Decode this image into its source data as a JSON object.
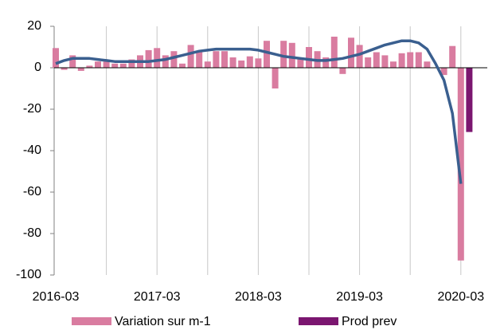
{
  "chart_data": {
    "type": "bar",
    "categories": [
      "2016-03",
      null,
      null,
      null,
      null,
      null,
      null,
      null,
      null,
      null,
      null,
      null,
      "2017-03",
      null,
      null,
      null,
      null,
      null,
      null,
      null,
      null,
      null,
      null,
      null,
      "2018-03",
      null,
      null,
      null,
      null,
      null,
      null,
      null,
      null,
      null,
      null,
      null,
      "2019-03",
      null,
      null,
      null,
      null,
      null,
      null,
      null,
      null,
      null,
      null,
      null,
      "2020-03",
      null
    ],
    "series": [
      {
        "name": "Variation sur m-1",
        "type": "bar",
        "color": "#d97ca0",
        "values": [
          9.5,
          -1,
          6,
          -1.5,
          1,
          3,
          3,
          2,
          2,
          4,
          6,
          8.5,
          9.5,
          6,
          8,
          2,
          11,
          8,
          3,
          8,
          8,
          5,
          3.5,
          5.5,
          4.5,
          13,
          -10,
          13,
          12,
          5,
          10,
          8,
          5,
          15,
          -3,
          14.5,
          11,
          5,
          7.5,
          6,
          3,
          7,
          7.5,
          7.5,
          3,
          0,
          -3.5,
          10.5,
          -93,
          null
        ]
      },
      {
        "name": "Prod prev",
        "type": "bar",
        "color": "#7b1670",
        "values": [
          null,
          null,
          null,
          null,
          null,
          null,
          null,
          null,
          null,
          null,
          null,
          null,
          null,
          null,
          null,
          null,
          null,
          null,
          null,
          null,
          null,
          null,
          null,
          null,
          null,
          null,
          null,
          null,
          null,
          null,
          null,
          null,
          null,
          null,
          null,
          null,
          null,
          null,
          null,
          null,
          null,
          null,
          null,
          null,
          null,
          null,
          null,
          null,
          null,
          -31
        ]
      },
      {
        "type": "line",
        "color": "#3a5f8f",
        "values": [
          2,
          3.5,
          4.5,
          4.5,
          4.5,
          4,
          3.5,
          3,
          3,
          3,
          3,
          3,
          3.5,
          4,
          5,
          6,
          7,
          8,
          8.5,
          9,
          9,
          9,
          9,
          9,
          8.5,
          7.5,
          6.5,
          5.5,
          5,
          4.5,
          4,
          3.5,
          3.5,
          4,
          4.5,
          5.5,
          6.5,
          8,
          9.5,
          11,
          12,
          13,
          13,
          12,
          9,
          2,
          -6,
          -22,
          -56,
          null
        ]
      }
    ],
    "ylim": [
      -100,
      20
    ],
    "yticks": [
      20,
      0,
      -20,
      -40,
      -60,
      -80,
      -100
    ]
  }
}
